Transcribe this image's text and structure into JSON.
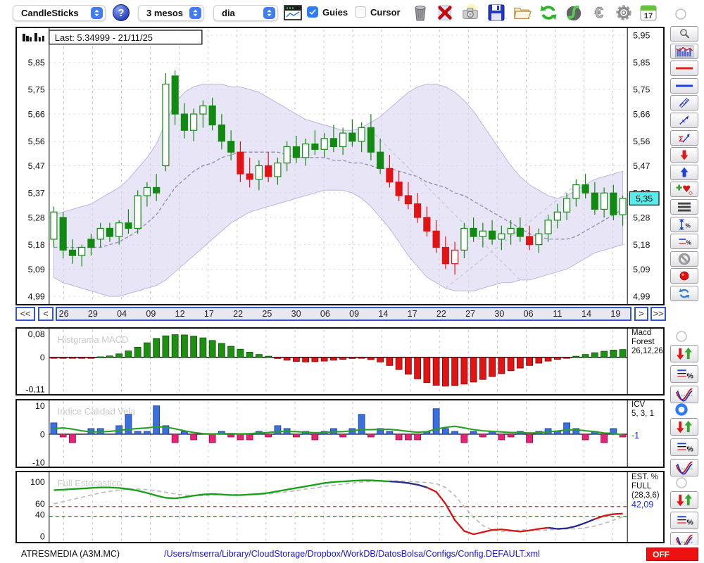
{
  "toolbar": {
    "chart_type": "CandleSticks",
    "period": "3 mesos",
    "timeframe": "dia",
    "guies_label": "Guies",
    "guies_checked": true,
    "cursor_label": "Cursor",
    "cursor_checked": false,
    "calendar_day": "17",
    "icons": [
      "help-icon",
      "mini-chart-icon",
      "trash-icon",
      "delete-icon",
      "snapshot-icon",
      "save-icon",
      "open-folder-icon",
      "refresh-icon",
      "sync-icon",
      "euro-icon",
      "settings-icon",
      "calendar-icon"
    ]
  },
  "datebar": {
    "rewind": "<<",
    "back": "<",
    "forward": ">",
    "fast_forward": ">>"
  },
  "sidebar": {
    "main_radio_selected": false,
    "tools": [
      "zoom-tool",
      "indicator-chart-tool",
      "red-hline-tool",
      "blue-hline-tool",
      "channel-tool",
      "trendline-tool",
      "sum-line-tool",
      "sell-arrow-tool",
      "buy-arrow-tool",
      "add-marker-tool",
      "levels-tool",
      "vertical-percent-tool",
      "lines-percent-tool",
      "disable-tool",
      "record-tool",
      "swap-tool"
    ],
    "panel_groups": [
      {
        "panel": "macd",
        "radio_selected": false,
        "buttons": [
          "signal-arrows-button",
          "lines-percent-button",
          "curves-button"
        ]
      },
      {
        "panel": "icv",
        "radio_selected": true,
        "buttons": [
          "signal-arrows-button",
          "lines-percent-button",
          "curves-button"
        ]
      },
      {
        "panel": "est",
        "radio_selected": false,
        "buttons": [
          "signal-arrows-button",
          "lines-percent-button",
          "curves-button"
        ]
      }
    ]
  },
  "statusbar": {
    "symbol": "ATRESMEDIA (A3M.MC)",
    "config_path": "/Users/mserra/Library/CloudStorage/Dropbox/WorkDB/DatosBolsa/Configs/Config.DEFAULT.xml",
    "off_label": "OFF",
    "off_color": "#ee1111"
  },
  "chart_data": [
    {
      "type": "candlestick",
      "title": "Last: 5.34999 - 21/11/25",
      "ylim": [
        4.99,
        5.95
      ],
      "ytick_values": [
        5.95,
        5.85,
        5.75,
        5.66,
        5.56,
        5.47,
        5.37,
        5.28,
        5.18,
        5.09,
        4.99
      ],
      "left_tick_labels": [
        "5,85",
        "5,75",
        "5,66",
        "5,56",
        "5,47",
        "5,37",
        "5,28",
        "5,18",
        "5,09",
        "4,99"
      ],
      "right_tick_labels": [
        "5,95",
        "5,85",
        "5,75",
        "5,66",
        "5,56",
        "5,47",
        "5,37",
        "5,28",
        "5,18",
        "5,09",
        "4,99"
      ],
      "price_tag": {
        "label": "5,35",
        "value": 5.35,
        "color": "#55ecec"
      },
      "xticks": [
        "26",
        "29",
        "04",
        "09",
        "12",
        "17",
        "22",
        "25",
        "30",
        "06",
        "09",
        "14",
        "17",
        "22",
        "27",
        "30",
        "06",
        "11",
        "14",
        "19"
      ],
      "candles": [
        [
          5.2,
          5.32,
          5.17,
          5.3,
          "w"
        ],
        [
          5.28,
          5.3,
          5.13,
          5.16,
          "g"
        ],
        [
          5.16,
          5.2,
          5.11,
          5.14,
          "g"
        ],
        [
          5.14,
          5.18,
          5.1,
          5.17,
          "w"
        ],
        [
          5.17,
          5.22,
          5.14,
          5.2,
          "g"
        ],
        [
          5.2,
          5.26,
          5.17,
          5.24,
          "w"
        ],
        [
          5.24,
          5.26,
          5.19,
          5.21,
          "g"
        ],
        [
          5.21,
          5.27,
          5.18,
          5.26,
          "w"
        ],
        [
          5.26,
          5.31,
          5.22,
          5.24,
          "g"
        ],
        [
          5.24,
          5.38,
          5.22,
          5.36,
          "w"
        ],
        [
          5.36,
          5.41,
          5.32,
          5.39,
          "w"
        ],
        [
          5.39,
          5.44,
          5.34,
          5.37,
          "g"
        ],
        [
          5.47,
          5.81,
          5.45,
          5.77,
          "w"
        ],
        [
          5.8,
          5.82,
          5.62,
          5.66,
          "g"
        ],
        [
          5.66,
          5.7,
          5.57,
          5.6,
          "g"
        ],
        [
          5.6,
          5.68,
          5.56,
          5.66,
          "w"
        ],
        [
          5.66,
          5.71,
          5.61,
          5.69,
          "w"
        ],
        [
          5.69,
          5.72,
          5.6,
          5.62,
          "g"
        ],
        [
          5.62,
          5.66,
          5.53,
          5.56,
          "g"
        ],
        [
          5.56,
          5.6,
          5.49,
          5.52,
          "g"
        ],
        [
          5.52,
          5.56,
          5.41,
          5.44,
          "r"
        ],
        [
          5.44,
          5.5,
          5.39,
          5.42,
          "r"
        ],
        [
          5.42,
          5.49,
          5.38,
          5.47,
          "w"
        ],
        [
          5.47,
          5.52,
          5.41,
          5.43,
          "r"
        ],
        [
          5.43,
          5.5,
          5.4,
          5.48,
          "w"
        ],
        [
          5.48,
          5.56,
          5.45,
          5.54,
          "w"
        ],
        [
          5.54,
          5.58,
          5.48,
          5.5,
          "g"
        ],
        [
          5.5,
          5.57,
          5.47,
          5.55,
          "w"
        ],
        [
          5.55,
          5.6,
          5.51,
          5.53,
          "g"
        ],
        [
          5.53,
          5.59,
          5.5,
          5.57,
          "w"
        ],
        [
          5.57,
          5.62,
          5.52,
          5.54,
          "g"
        ],
        [
          5.54,
          5.61,
          5.51,
          5.59,
          "w"
        ],
        [
          5.59,
          5.64,
          5.54,
          5.56,
          "g"
        ],
        [
          5.56,
          5.63,
          5.52,
          5.61,
          "w"
        ],
        [
          5.61,
          5.66,
          5.49,
          5.52,
          "g"
        ],
        [
          5.52,
          5.57,
          5.44,
          5.46,
          "g"
        ],
        [
          5.46,
          5.51,
          5.39,
          5.41,
          "r"
        ],
        [
          5.41,
          5.45,
          5.34,
          5.36,
          "r"
        ],
        [
          5.36,
          5.41,
          5.31,
          5.33,
          "r"
        ],
        [
          5.33,
          5.37,
          5.26,
          5.28,
          "r"
        ],
        [
          5.28,
          5.32,
          5.21,
          5.23,
          "r"
        ],
        [
          5.23,
          5.27,
          5.15,
          5.17,
          "r"
        ],
        [
          5.17,
          5.21,
          5.09,
          5.11,
          "r"
        ],
        [
          5.11,
          5.19,
          5.07,
          5.16,
          "wr"
        ],
        [
          5.16,
          5.26,
          5.13,
          5.24,
          "w"
        ],
        [
          5.24,
          5.28,
          5.19,
          5.21,
          "g"
        ],
        [
          5.21,
          5.26,
          5.17,
          5.23,
          "w"
        ],
        [
          5.23,
          5.27,
          5.18,
          5.2,
          "g"
        ],
        [
          5.2,
          5.25,
          5.16,
          5.22,
          "w"
        ],
        [
          5.22,
          5.27,
          5.18,
          5.24,
          "w"
        ],
        [
          5.24,
          5.28,
          5.19,
          5.21,
          "g"
        ],
        [
          5.21,
          5.25,
          5.16,
          5.18,
          "r"
        ],
        [
          5.18,
          5.24,
          5.15,
          5.22,
          "w"
        ],
        [
          5.22,
          5.29,
          5.19,
          5.27,
          "w"
        ],
        [
          5.27,
          5.33,
          5.24,
          5.3,
          "w"
        ],
        [
          5.3,
          5.37,
          5.27,
          5.35,
          "w"
        ],
        [
          5.35,
          5.42,
          5.32,
          5.4,
          "w"
        ],
        [
          5.4,
          5.44,
          5.35,
          5.37,
          "g"
        ],
        [
          5.37,
          5.41,
          5.29,
          5.31,
          "g"
        ],
        [
          5.31,
          5.39,
          5.28,
          5.37,
          "w"
        ],
        [
          5.37,
          5.4,
          5.27,
          5.29,
          "g"
        ],
        [
          5.29,
          5.36,
          5.25,
          5.35,
          "w"
        ]
      ],
      "band_upper": [
        5.29,
        5.3,
        5.31,
        5.32,
        5.33,
        5.35,
        5.37,
        5.39,
        5.42,
        5.46,
        5.5,
        5.55,
        5.63,
        5.7,
        5.74,
        5.76,
        5.77,
        5.77,
        5.77,
        5.76,
        5.76,
        5.75,
        5.74,
        5.72,
        5.7,
        5.68,
        5.66,
        5.64,
        5.63,
        5.62,
        5.61,
        5.6,
        5.6,
        5.61,
        5.63,
        5.65,
        5.68,
        5.71,
        5.74,
        5.76,
        5.77,
        5.77,
        5.76,
        5.74,
        5.71,
        5.67,
        5.62,
        5.57,
        5.52,
        5.47,
        5.43,
        5.4,
        5.38,
        5.36,
        5.35,
        5.36,
        5.38,
        5.4,
        5.42,
        5.43,
        5.44,
        5.45
      ],
      "band_lower": [
        5.06,
        5.04,
        5.03,
        5.02,
        5.01,
        5.0,
        4.99,
        4.99,
        5.0,
        5.01,
        5.02,
        5.03,
        5.05,
        5.08,
        5.11,
        5.14,
        5.17,
        5.2,
        5.23,
        5.26,
        5.28,
        5.3,
        5.31,
        5.32,
        5.33,
        5.34,
        5.35,
        5.36,
        5.37,
        5.38,
        5.38,
        5.38,
        5.37,
        5.35,
        5.32,
        5.28,
        5.24,
        5.19,
        5.14,
        5.1,
        5.06,
        5.04,
        5.02,
        5.01,
        5.01,
        5.01,
        5.02,
        5.03,
        5.04,
        5.04,
        5.05,
        5.05,
        5.06,
        5.07,
        5.08,
        5.09,
        5.11,
        5.13,
        5.15,
        5.16,
        5.17,
        5.18
      ],
      "mid_dashed": [
        5.17,
        5.17,
        5.17,
        5.17,
        5.17,
        5.17,
        5.18,
        5.19,
        5.21,
        5.23,
        5.26,
        5.29,
        5.34,
        5.39,
        5.42,
        5.45,
        5.47,
        5.48,
        5.5,
        5.51,
        5.52,
        5.52,
        5.52,
        5.52,
        5.52,
        5.51,
        5.5,
        5.5,
        5.5,
        5.5,
        5.49,
        5.49,
        5.48,
        5.48,
        5.47,
        5.46,
        5.46,
        5.45,
        5.44,
        5.43,
        5.41,
        5.4,
        5.39,
        5.37,
        5.36,
        5.34,
        5.32,
        5.3,
        5.28,
        5.26,
        5.24,
        5.22,
        5.21,
        5.2,
        5.2,
        5.2,
        5.21,
        5.23,
        5.25,
        5.27,
        5.29,
        5.31
      ],
      "guide_lines": [
        [
          34,
          5.6,
          50,
          5.05
        ],
        [
          42,
          5.02,
          56,
          5.4
        ]
      ],
      "colors": {
        "up": "#128a12",
        "down": "#e01414",
        "band": "#d9d5f1",
        "mid": "#8f8cae"
      }
    },
    {
      "type": "bar",
      "title": "Histgrama MACD",
      "right_label_lines": [
        "Macd",
        "Forest",
        "26,12,26"
      ],
      "ylim": [
        -0.11,
        0.08
      ],
      "yticks": [
        {
          "label": "0,08",
          "value": 0.08
        },
        {
          "label": "0",
          "value": 0
        },
        {
          "label": "-0,11",
          "value": -0.11
        }
      ],
      "values": [
        -0.001,
        -0.002,
        -0.003,
        -0.003,
        -0.002,
        0.002,
        0.005,
        0.012,
        0.022,
        0.035,
        0.05,
        0.065,
        0.074,
        0.078,
        0.077,
        0.073,
        0.067,
        0.058,
        0.048,
        0.038,
        0.028,
        0.018,
        0.01,
        0.004,
        -0.004,
        -0.01,
        -0.014,
        -0.016,
        -0.015,
        -0.013,
        -0.01,
        -0.007,
        -0.004,
        -0.003,
        -0.008,
        -0.016,
        -0.028,
        -0.042,
        -0.058,
        -0.074,
        -0.087,
        -0.096,
        -0.099,
        -0.097,
        -0.092,
        -0.085,
        -0.076,
        -0.066,
        -0.056,
        -0.046,
        -0.037,
        -0.028,
        -0.02,
        -0.013,
        -0.007,
        -0.002,
        0.004,
        0.01,
        0.016,
        0.021,
        0.025,
        0.027
      ],
      "colors": {
        "pos": "#1f8f12",
        "neg": "#e01414"
      }
    },
    {
      "type": "bar-line",
      "title": "Indice Calidad Vela",
      "right_label_lines": [
        "ICV",
        "5, 3, 1"
      ],
      "current_value": "-1",
      "ylim": [
        -10,
        10
      ],
      "yticks": [
        {
          "label": "10",
          "value": 10
        },
        {
          "label": "0",
          "value": 0
        },
        {
          "label": "-10",
          "value": -10
        }
      ],
      "bars": [
        4,
        -1,
        -3,
        0,
        2,
        2,
        0,
        3,
        7,
        1,
        1,
        10,
        3,
        -3,
        1,
        -2,
        0,
        -3,
        1,
        -1,
        -2,
        -2,
        1,
        -1,
        3,
        2,
        -1,
        1,
        -2,
        1,
        2,
        -1,
        2,
        7,
        -1,
        2,
        1,
        -2,
        -2,
        -2,
        1,
        9,
        2,
        1,
        -3,
        1,
        -1,
        1,
        -2,
        -1,
        1,
        -3,
        1,
        2,
        1,
        4,
        2,
        -2,
        1,
        -3,
        2,
        -1
      ],
      "line": [
        2.0,
        2.2,
        1.8,
        1.2,
        0.8,
        0.8,
        1.0,
        1.3,
        1.7,
        2.0,
        2.2,
        2.6,
        2.5,
        1.9,
        1.2,
        0.6,
        0.2,
        0.1,
        0.2,
        0.2,
        0.1,
        0.2,
        0.4,
        0.6,
        0.9,
        1.0,
        0.9,
        0.7,
        0.5,
        0.6,
        0.8,
        0.9,
        1.2,
        1.6,
        1.6,
        1.7,
        1.7,
        1.4,
        1.0,
        0.7,
        0.9,
        1.8,
        2.4,
        2.8,
        2.2,
        1.6,
        1.2,
        1.0,
        0.8,
        0.6,
        0.6,
        0.4,
        0.5,
        0.8,
        1.1,
        1.5,
        1.6,
        1.2,
        0.9,
        0.4,
        0.3,
        -0.3
      ],
      "colors": {
        "pos": "#3a6fe0",
        "neg": "#e82277",
        "line": "#28a028"
      }
    },
    {
      "type": "line",
      "title": "Full Estocastico",
      "right_label_lines": [
        "EST. %",
        "FULL",
        "(28,3,6)"
      ],
      "current_value": "42,09",
      "ylim": [
        0,
        108
      ],
      "yticks": [
        {
          "label": "100",
          "value": 100
        },
        {
          "label": "60",
          "value": 60
        },
        {
          "label": "40",
          "value": 40
        },
        {
          "label": "0",
          "value": 0
        }
      ],
      "k_line": [
        85,
        86,
        87,
        88,
        89,
        90,
        90,
        89,
        87,
        84,
        80,
        75,
        71,
        70,
        72,
        75,
        77,
        78,
        77,
        76,
        76,
        77,
        78,
        80,
        83,
        86,
        89,
        92,
        95,
        98,
        100,
        101,
        102,
        103,
        103,
        102,
        101,
        100,
        98,
        95,
        90,
        82,
        60,
        30,
        10,
        4,
        8,
        12,
        13,
        11,
        9,
        11,
        14,
        16,
        14,
        15,
        19,
        25,
        32,
        38,
        41,
        42
      ],
      "d_line": [
        60,
        64,
        68,
        72,
        76,
        80,
        83,
        85,
        87,
        87,
        86,
        84,
        81,
        78,
        76,
        75,
        75,
        76,
        77,
        77,
        77,
        77,
        77,
        78,
        80,
        82,
        84,
        87,
        89,
        92,
        94,
        96,
        98,
        100,
        101,
        102,
        102,
        102,
        101,
        100,
        99,
        97,
        90,
        75,
        55,
        35,
        20,
        12,
        9,
        10,
        12,
        12,
        11,
        12,
        13,
        14,
        14,
        16,
        19,
        24,
        30,
        36
      ],
      "k_segments": [
        {
          "from": 0,
          "to": 36,
          "color": "#15a015"
        },
        {
          "from": 36,
          "to": 40,
          "color": "#2a2a8c"
        },
        {
          "from": 40,
          "to": 53,
          "color": "#d81414"
        },
        {
          "from": 53,
          "to": 58,
          "color": "#2a2a8c"
        },
        {
          "from": 58,
          "to": 61,
          "color": "#d81414"
        }
      ],
      "levels": [
        {
          "value": 55,
          "color": "#d82222"
        },
        {
          "value": 37,
          "color": "#1a8a1a"
        }
      ],
      "d_color": "#bdbdbd"
    }
  ]
}
